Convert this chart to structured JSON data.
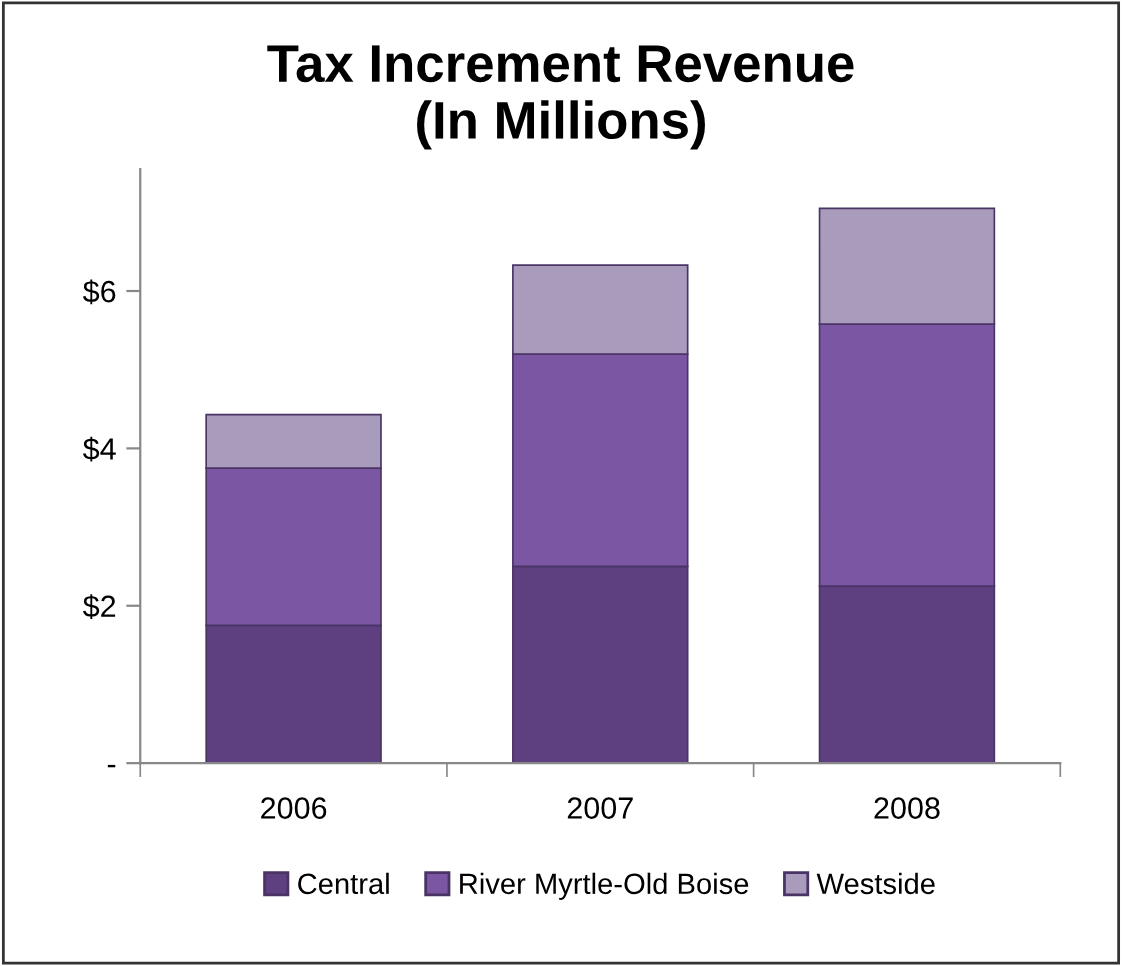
{
  "chart_data": {
    "type": "bar",
    "title": "Tax Increment Revenue\n(In Millions)",
    "stacked": true,
    "categories": [
      "2006",
      "2007",
      "2008"
    ],
    "series": [
      {
        "name": "Central",
        "color": "#5e3f7f",
        "values": [
          1.75,
          2.5,
          2.25
        ]
      },
      {
        "name": "River Myrtle-Old Boise",
        "color": "#7a56a3",
        "values": [
          2.0,
          2.7,
          3.33
        ]
      },
      {
        "name": "Westside",
        "color": "#a99bbb",
        "values": [
          0.68,
          1.13,
          1.47
        ]
      }
    ],
    "ylim": [
      0,
      7.55
    ],
    "yticks": [
      {
        "value": 0,
        "label": "-"
      },
      {
        "value": 2,
        "label": "$2"
      },
      {
        "value": 4,
        "label": "$4"
      },
      {
        "value": 6,
        "label": "$6"
      }
    ],
    "grid": false,
    "legend": "bottom"
  }
}
